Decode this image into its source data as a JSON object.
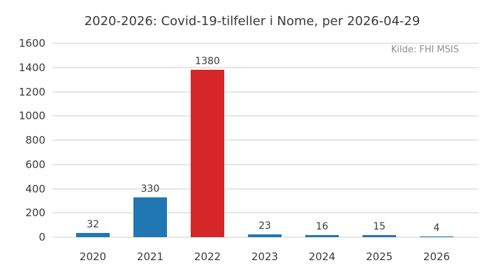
{
  "chart_data": {
    "type": "bar",
    "title": "2020-2026: Covid-19-tilfeller i Nome, per 2026-04-29",
    "annotation": "Kilde: FHI MSIS",
    "categories": [
      "2020",
      "2021",
      "2022",
      "2023",
      "2024",
      "2025",
      "2026"
    ],
    "values": [
      32,
      330,
      1380,
      23,
      16,
      15,
      4
    ],
    "value_labels": [
      "32",
      "330",
      "1380",
      "23",
      "16",
      "15",
      "4"
    ],
    "bar_colors": [
      "#2077b4",
      "#2077b4",
      "#d62728",
      "#2077b4",
      "#2077b4",
      "#2077b4",
      "#2077b4"
    ],
    "xlabel": "",
    "ylabel": "",
    "ylim": [
      0,
      1600
    ],
    "yticks": [
      0,
      200,
      400,
      600,
      800,
      1000,
      1200,
      1400,
      1600
    ],
    "grid": true,
    "legend": false,
    "colors": {
      "bar_default": "#2077b4",
      "bar_highlight": "#d62728",
      "text": "#3a3a3a",
      "muted_text": "#8f8f8f",
      "gridline": "#e6e6e6",
      "background": "#ffffff"
    }
  }
}
